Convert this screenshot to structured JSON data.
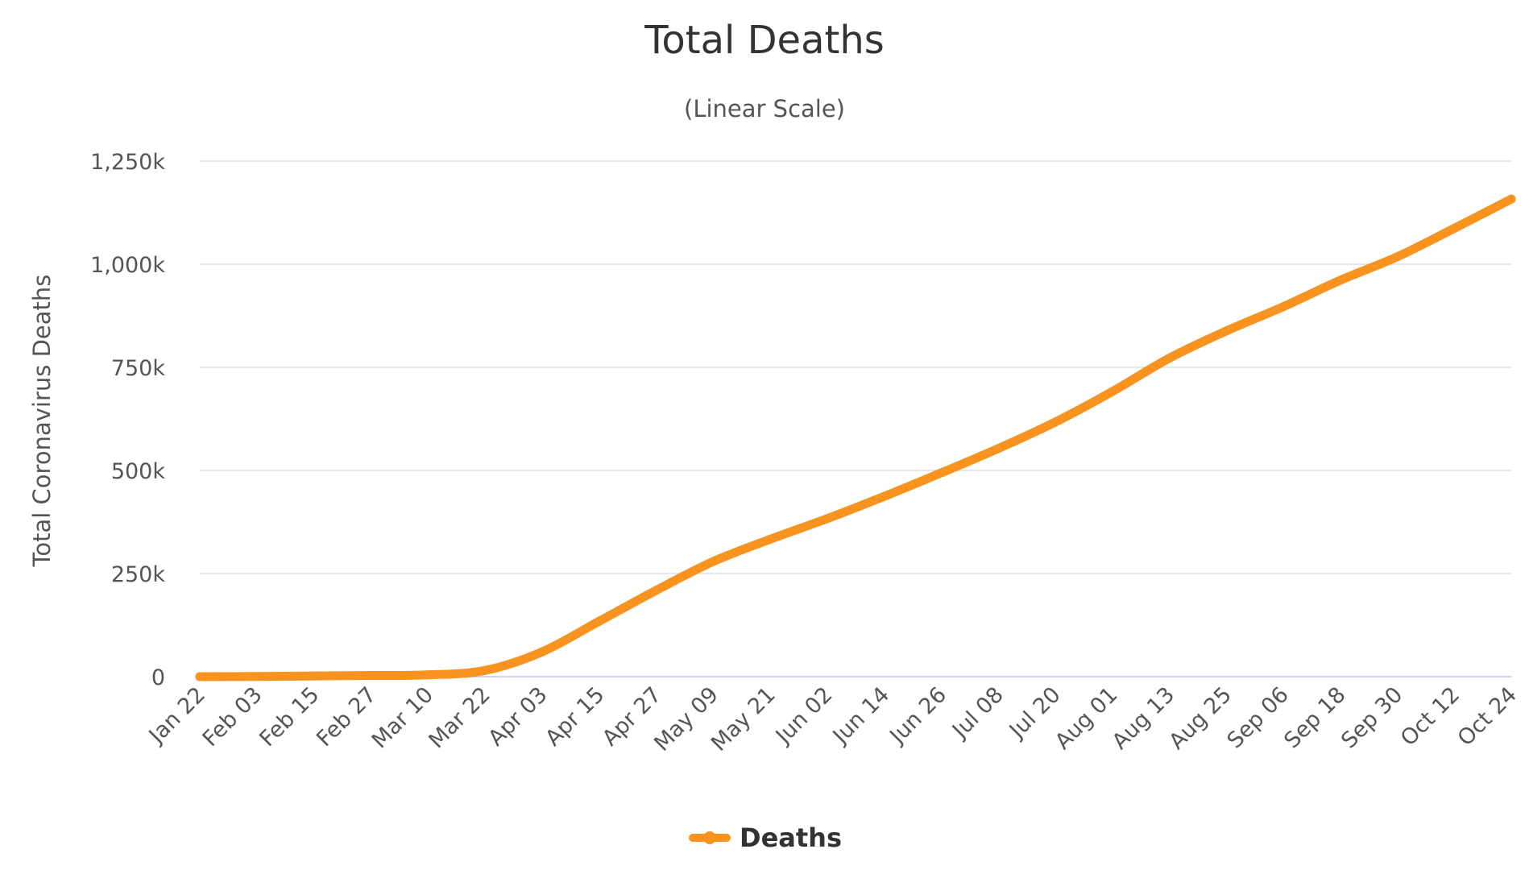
{
  "chart_data": {
    "type": "line",
    "title": "Total Deaths",
    "subtitle": "(Linear Scale)",
    "ylabel": "Total Coronavirus Deaths",
    "xlabel": "",
    "ylim": [
      0,
      1250000
    ],
    "yticks": [
      0,
      250000,
      500000,
      750000,
      1000000,
      1250000
    ],
    "ytick_labels": [
      "0",
      "250k",
      "500k",
      "750k",
      "1,000k",
      "1,250k"
    ],
    "x_tick_labels": [
      "Jan 22",
      "Feb 03",
      "Feb 15",
      "Feb 27",
      "Mar 10",
      "Mar 22",
      "Apr 03",
      "Apr 15",
      "Apr 27",
      "May 09",
      "May 21",
      "Jun 02",
      "Jun 14",
      "Jun 26",
      "Jul 08",
      "Jul 20",
      "Aug 01",
      "Aug 13",
      "Aug 25",
      "Sep 06",
      "Sep 18",
      "Sep 30",
      "Oct 12",
      "Oct 24"
    ],
    "grid": true,
    "legend_position": "bottom-center",
    "colors": {
      "series": "#f7931e",
      "grid": "#e6e6e6",
      "axis": "#ccd6eb"
    },
    "series": [
      {
        "name": "Deaths",
        "x": [
          "Jan 22",
          "Feb 03",
          "Feb 15",
          "Feb 27",
          "Mar 10",
          "Mar 22",
          "Apr 03",
          "Apr 15",
          "Apr 27",
          "May 09",
          "May 21",
          "Jun 02",
          "Jun 14",
          "Jun 26",
          "Jul 08",
          "Jul 20",
          "Aug 01",
          "Aug 13",
          "Aug 25",
          "Sep 06",
          "Sep 18",
          "Sep 30",
          "Oct 12",
          "Oct 24"
        ],
        "values": [
          17,
          427,
          1669,
          2870,
          4292,
          15000,
          60000,
          134000,
          209000,
          279000,
          333000,
          383000,
          437000,
          494000,
          553000,
          617000,
          691000,
          772000,
          838000,
          897000,
          961000,
          1018000,
          1087000,
          1158000
        ]
      }
    ]
  }
}
